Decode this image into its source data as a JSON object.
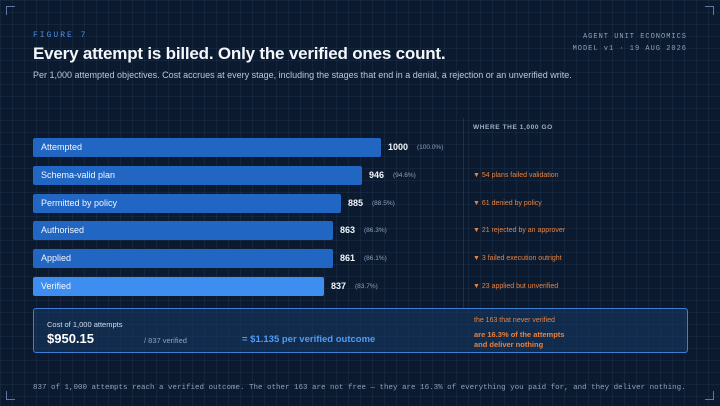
{
  "figure_label": "FIGURE 7",
  "title": "Every attempt is billed. Only the verified ones count.",
  "subtitle": "Per 1,000 attempted objectives. Cost accrues at every stage, including the stages that end in a denial, a rejection or an unverified write.",
  "meta": {
    "line1": "AGENT UNIT ECONOMICS",
    "line2": "MODEL v1 · 19 AUG 2026"
  },
  "side_heading": "WHERE THE 1,000 GO",
  "chart_data": {
    "type": "bar",
    "orientation": "horizontal",
    "categories": [
      "Attempted",
      "Schema-valid plan",
      "Permitted by policy",
      "Authorised",
      "Applied",
      "Verified"
    ],
    "values": [
      1000,
      946,
      885,
      863,
      861,
      837
    ],
    "percent_labels": [
      "(100.0%)",
      "(94.6%)",
      "(88.5%)",
      "(86.3%)",
      "(86.1%)",
      "(83.7%)"
    ],
    "value_labels": [
      "1000",
      "946",
      "885",
      "863",
      "861",
      "837"
    ],
    "losses": [
      "",
      "▼ 54 plans failed validation",
      "▼ 61 denied by policy",
      "▼ 21 rejected by an approver",
      "▼ 3 failed execution outright",
      "▼ 23 applied but unverified"
    ],
    "highlight_index": 5,
    "xlim": [
      0,
      1000
    ],
    "colors": {
      "bar": "#2266c4",
      "highlight": "#3d8ef0",
      "loss": "#e9823e"
    }
  },
  "cost_box": {
    "label": "Cost of 1,000 attempts",
    "value": "$950.15",
    "divisor": "/ 837 verified",
    "result": "= $1.135 per verified outcome",
    "never_verified_heading": "the 163 that never verified",
    "never_verified_line1": "are 16.3% of the attempts",
    "never_verified_line2": "and deliver nothing"
  },
  "footer": "837 of 1,000 attempts reach a verified outcome. The other 163 are not free — they are 16.3% of everything you paid for, and they deliver nothing."
}
